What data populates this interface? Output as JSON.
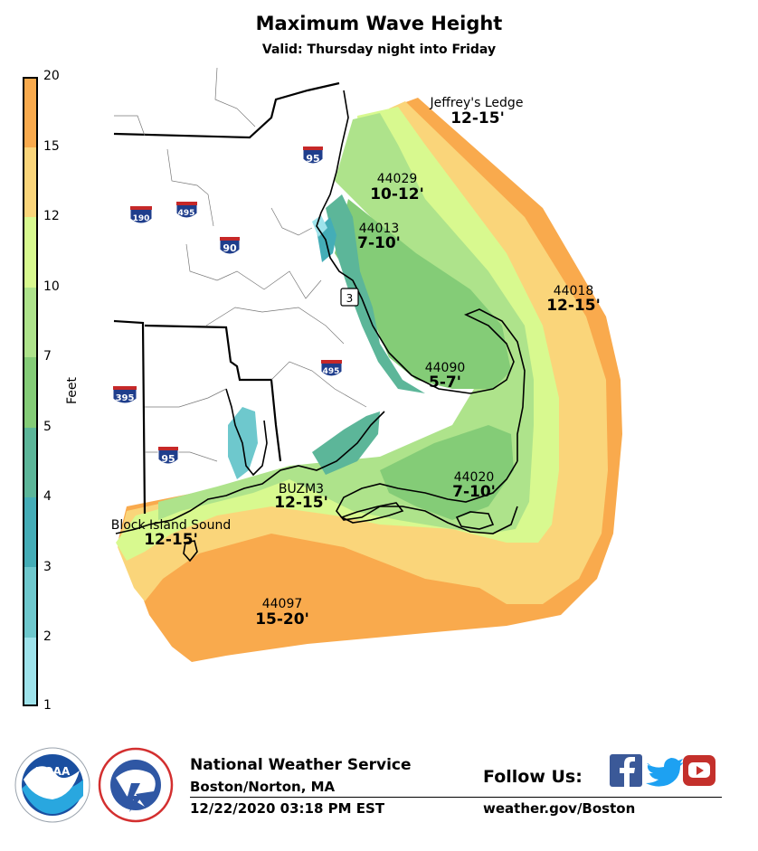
{
  "title": "Maximum Wave Height",
  "subtitle": "Valid: Thursday night into Friday",
  "colorbar": {
    "label": "Feet",
    "ticks": [
      "20",
      "15",
      "12",
      "10",
      "7",
      "5",
      "4",
      "3",
      "2",
      "1"
    ],
    "colors": [
      "#f9aa4d",
      "#fad57a",
      "#d8f98f",
      "#aee38b",
      "#84cc77",
      "#5cb699",
      "#44adb7",
      "#6ec8cd",
      "#9ee3eb"
    ]
  },
  "map": {
    "buoys": [
      {
        "name": "Jeffrey's Ledge",
        "value": "12-15'"
      },
      {
        "name": "44029",
        "value": "10-12'"
      },
      {
        "name": "44013",
        "value": "7-10'"
      },
      {
        "name": "44018",
        "value": "12-15'"
      },
      {
        "name": "44090",
        "value": "5-7'"
      },
      {
        "name": "44020",
        "value": "7-10'"
      },
      {
        "name": "BUZM3",
        "value": "12-15'"
      },
      {
        "name": "Block Island Sound",
        "value": "12-15'"
      },
      {
        "name": "44097",
        "value": "15-20'"
      }
    ],
    "shields": [
      "95",
      "190",
      "495",
      "90",
      "3",
      "495",
      "395",
      "95"
    ]
  },
  "footer": {
    "agency": "National Weather Service",
    "office": "Boston/Norton, MA",
    "timestamp": "12/22/2020 03:18 PM EST",
    "follow": "Follow Us:",
    "website": "weather.gov/Boston",
    "noaa_logo_text": "NOAA",
    "social": [
      "facebook-icon",
      "twitter-icon",
      "youtube-icon"
    ]
  }
}
